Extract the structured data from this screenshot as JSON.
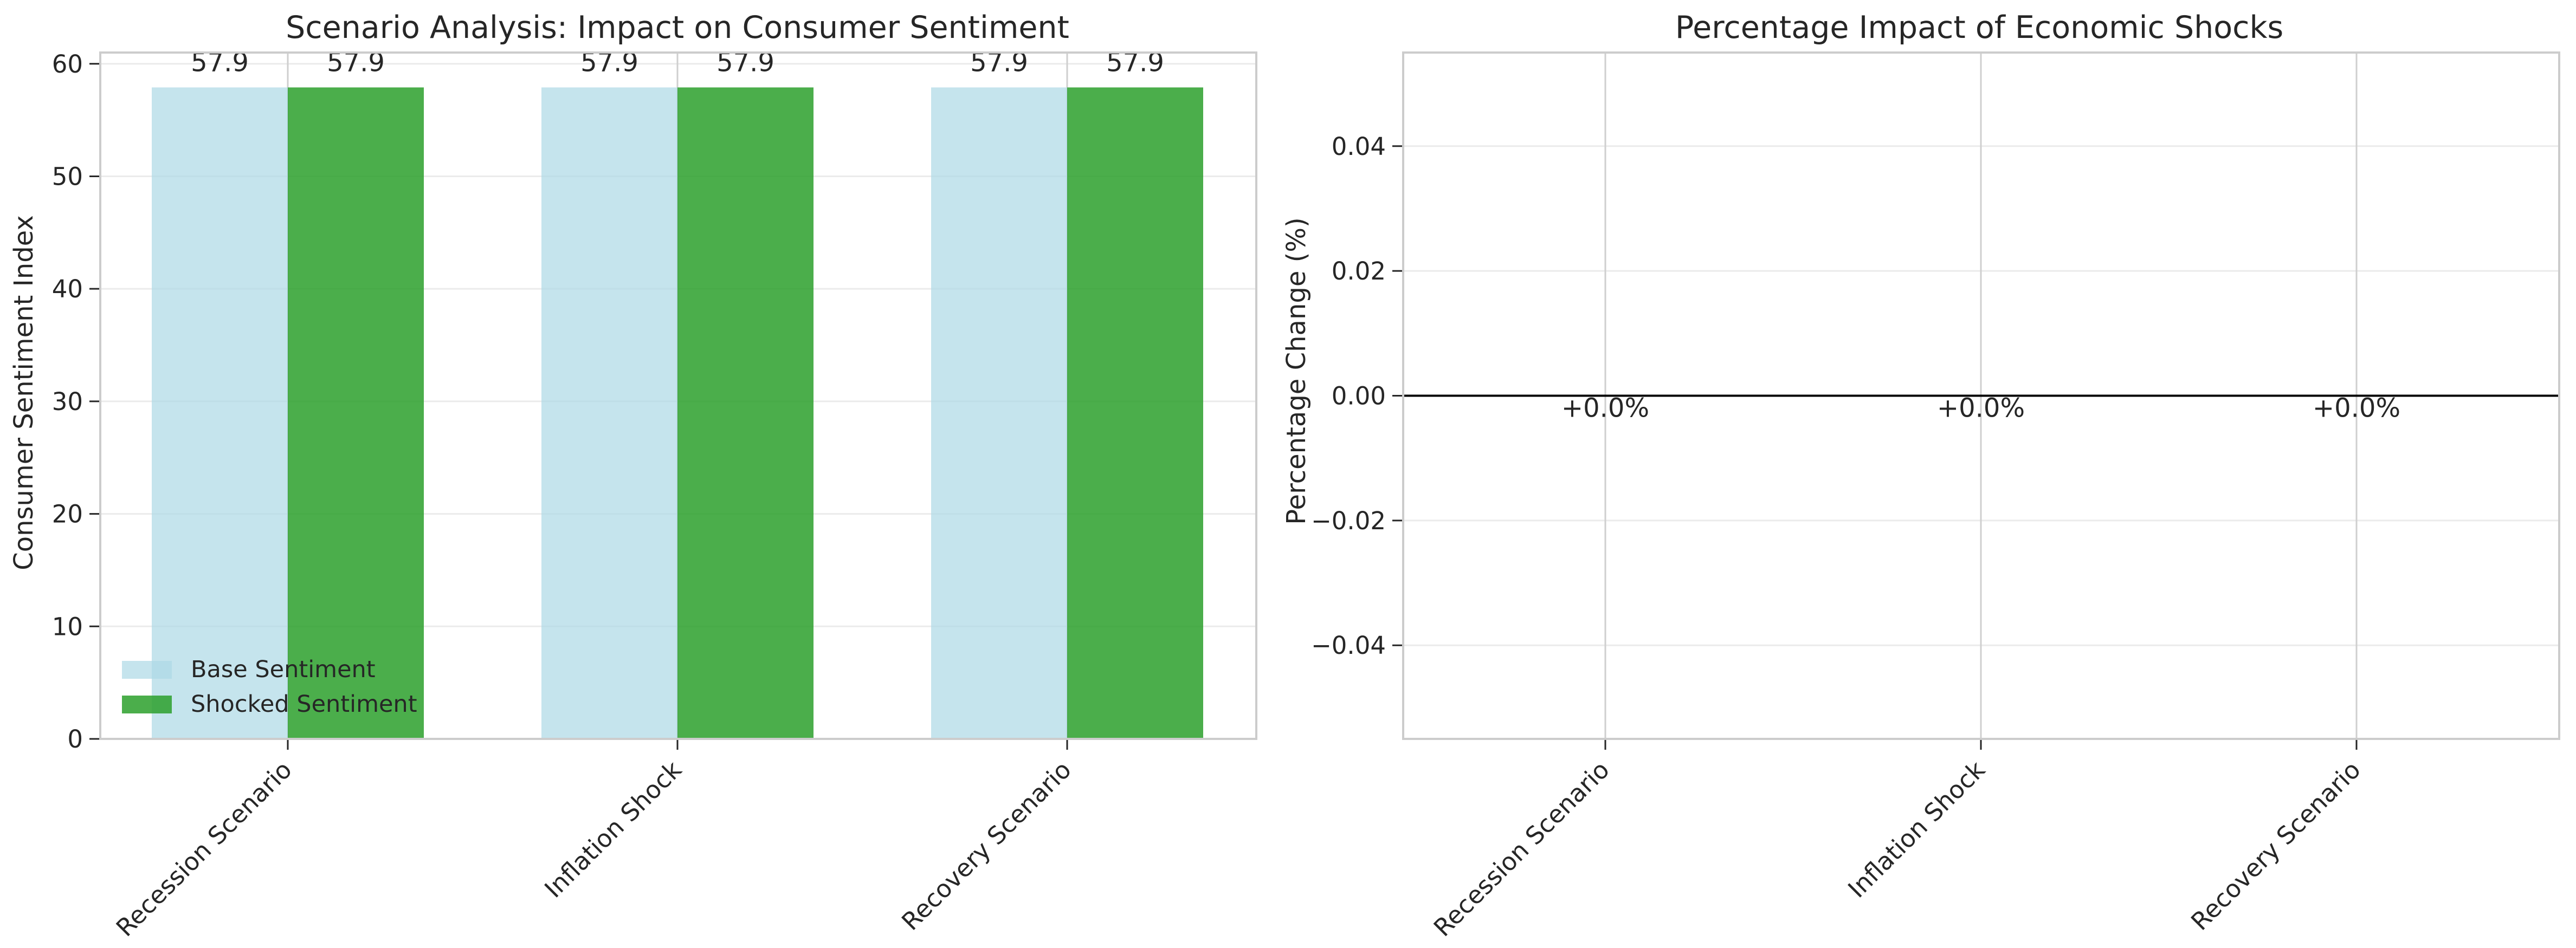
{
  "chart_data": [
    {
      "type": "bar",
      "title": "Scenario Analysis: Impact on Consumer Sentiment",
      "ylabel": "Consumer Sentiment Index",
      "categories": [
        "Recession Scenario",
        "Inflation Shock",
        "Recovery Scenario"
      ],
      "series": [
        {
          "name": "Base Sentiment",
          "values": [
            57.9,
            57.9,
            57.9
          ],
          "color": "#add8e6"
        },
        {
          "name": "Shocked Sentiment",
          "values": [
            57.9,
            57.9,
            57.9
          ],
          "color": "#2ca02c"
        }
      ],
      "data_labels": [
        [
          "57.9",
          "57.9",
          "57.9"
        ],
        [
          "57.9",
          "57.9",
          "57.9"
        ]
      ],
      "ylim": [
        0,
        61
      ],
      "yticks": [
        0,
        10,
        20,
        30,
        40,
        50,
        60
      ],
      "grid": true,
      "legend": "lower-left"
    },
    {
      "type": "bar",
      "title": "Percentage Impact of Economic Shocks",
      "ylabel": "Percentage Change (%)",
      "categories": [
        "Recession Scenario",
        "Inflation Shock",
        "Recovery Scenario"
      ],
      "values": [
        0.0,
        0.0,
        0.0
      ],
      "data_labels": [
        "+0.0%",
        "+0.0%",
        "+0.0%"
      ],
      "ylim": [
        -0.055,
        0.055
      ],
      "yticks": [
        -0.04,
        -0.02,
        0.0,
        0.02,
        0.04
      ],
      "ytick_labels": [
        "−0.04",
        "−0.02",
        "0.00",
        "0.02",
        "0.04"
      ],
      "grid": true,
      "zero_line": true
    }
  ]
}
